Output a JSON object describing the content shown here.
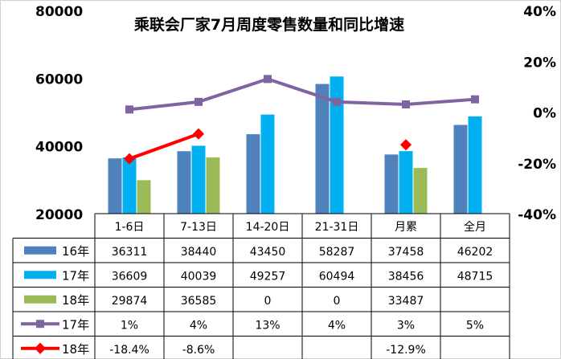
{
  "chart_data": {
    "type": "bar",
    "title": "乘联会厂家7月周度零售数量和同比增速",
    "categories": [
      "1-6日",
      "7-13日",
      "14-20日",
      "21-31日",
      "月累",
      "全月"
    ],
    "y_left": {
      "ticks": [
        "80000",
        "60000",
        "40000",
        "20000"
      ],
      "ylim": [
        20000,
        80000
      ]
    },
    "y_right": {
      "ticks": [
        "40%",
        "20%",
        "0%",
        "-20%",
        "-40%"
      ],
      "ylim": [
        -40,
        40
      ]
    },
    "grid": false,
    "legend": "data-table",
    "series": [
      {
        "name": "16年",
        "type": "bar",
        "color": "#4F81BD",
        "values": [
          36311,
          38440,
          43450,
          58287,
          37458,
          46202
        ],
        "labels": [
          "36311",
          "38440",
          "43450",
          "58287",
          "37458",
          "46202"
        ]
      },
      {
        "name": "17年",
        "type": "bar",
        "color": "#00B0F0",
        "values": [
          36609,
          40039,
          49257,
          60494,
          38456,
          48715
        ],
        "labels": [
          "36609",
          "40039",
          "49257",
          "60494",
          "38456",
          "48715"
        ]
      },
      {
        "name": "18年",
        "type": "bar",
        "color": "#9BBB59",
        "values": [
          29874,
          36585,
          0,
          0,
          33487,
          null
        ],
        "labels": [
          "29874",
          "36585",
          "0",
          "0",
          "33487",
          ""
        ]
      },
      {
        "name": "17年",
        "type": "line",
        "axis": "right",
        "color": "#8064A2",
        "values": [
          1,
          4,
          13,
          4,
          3,
          5
        ],
        "labels": [
          "1%",
          "4%",
          "13%",
          "4%",
          "3%",
          "5%"
        ]
      },
      {
        "name": "18年",
        "type": "line",
        "axis": "right",
        "color": "#FF0000",
        "values": [
          -18.4,
          -8.6,
          null,
          null,
          -12.9,
          null
        ],
        "labels": [
          "-18.4%",
          "-8.6%",
          "",
          "",
          "-12.9%",
          ""
        ]
      }
    ]
  }
}
